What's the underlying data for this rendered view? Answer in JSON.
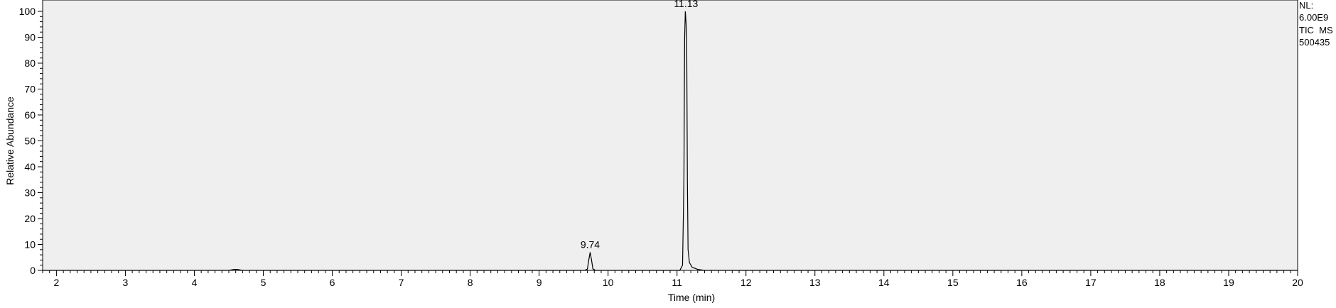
{
  "chart_data": {
    "type": "line",
    "title": "",
    "xlabel": "Time (min)",
    "ylabel": "Relative Abundance",
    "xlim": [
      1.8,
      20.0
    ],
    "ylim": [
      0,
      100
    ],
    "x_ticks": [
      2,
      3,
      4,
      5,
      6,
      7,
      8,
      9,
      10,
      11,
      12,
      13,
      14,
      15,
      16,
      17,
      18,
      19,
      20
    ],
    "y_ticks": [
      0,
      10,
      20,
      30,
      40,
      50,
      60,
      70,
      80,
      90,
      100
    ],
    "grid": false,
    "plot_background": "#efefef",
    "line_color": "#000000",
    "series": [
      {
        "x": [
          1.8,
          4.5,
          4.58,
          4.62,
          4.7,
          9.66,
          9.7,
          9.72,
          9.74,
          9.76,
          9.78,
          9.82,
          11.04,
          11.08,
          11.1,
          11.11,
          11.12,
          11.13,
          11.14,
          11.15,
          11.16,
          11.18,
          11.22,
          11.3,
          11.4,
          20.0
        ],
        "y": [
          0,
          0,
          0.4,
          0.4,
          0,
          0,
          0.5,
          4.0,
          7.0,
          4.0,
          0.6,
          0,
          0,
          2,
          35,
          89,
          100,
          96,
          90,
          35,
          8,
          3,
          1.2,
          0.4,
          0,
          0
        ]
      }
    ],
    "peak_labels": [
      {
        "x": 9.74,
        "y": 7.0,
        "text": "9.74"
      },
      {
        "x": 11.13,
        "y": 100,
        "text": "11.13"
      }
    ]
  },
  "info": {
    "nl_label": "NL:",
    "nl_value": "6.00E9",
    "trace": "TIC  MS",
    "file": "500435"
  }
}
